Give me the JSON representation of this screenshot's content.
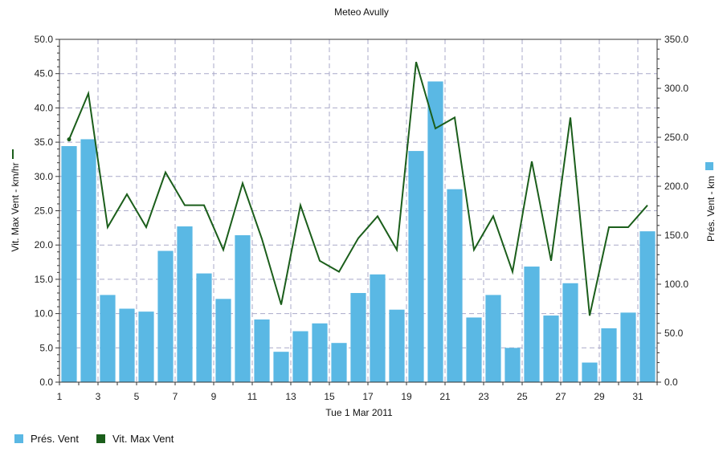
{
  "colors": {
    "bar": "#5ab8e4",
    "line": "#1b5e1b",
    "grid": "#a9a9c9",
    "axis": "#333333"
  },
  "chart_data": {
    "type": "bar",
    "title": "Meteo  Avully",
    "xlabel": "Tue 1 Mar 2011",
    "ylabel_left": "Vit. Max Vent - km/hr",
    "ylabel_right": "Prés. Vent - km",
    "ylim_left": [
      0,
      50
    ],
    "ylim_right": [
      0,
      350
    ],
    "yticks_left": [
      "0.0",
      "5.0",
      "10.0",
      "15.0",
      "20.0",
      "25.0",
      "30.0",
      "35.0",
      "40.0",
      "45.0",
      "50.0"
    ],
    "yticks_right": [
      "0.0",
      "50.0",
      "100.0",
      "150.0",
      "200.0",
      "250.0",
      "300.0",
      "350.0"
    ],
    "xticks": [
      "1",
      "3",
      "5",
      "7",
      "9",
      "11",
      "13",
      "15",
      "17",
      "19",
      "21",
      "23",
      "25",
      "27",
      "29",
      "31"
    ],
    "x": [
      1,
      2,
      3,
      4,
      5,
      6,
      7,
      8,
      9,
      10,
      11,
      12,
      13,
      14,
      15,
      16,
      17,
      18,
      19,
      20,
      21,
      22,
      23,
      24,
      25,
      26,
      27,
      28,
      29,
      30,
      31
    ],
    "grid": true,
    "legend_position": "bottom-left",
    "series": [
      {
        "name": "Prés. Vent",
        "type": "bar",
        "axis": "right",
        "values": [
          241,
          248,
          89,
          75,
          72,
          134,
          159,
          111,
          85,
          150,
          64,
          31,
          52,
          60,
          40,
          91,
          110,
          74,
          236,
          307,
          197,
          66,
          89,
          35,
          118,
          68,
          101,
          20,
          55,
          71,
          154
        ]
      },
      {
        "name": "Vit. Max Vent",
        "type": "line",
        "axis": "left",
        "values": [
          35.4,
          42.1,
          22.6,
          27.4,
          22.6,
          30.6,
          25.8,
          25.8,
          19.3,
          29.0,
          20.9,
          11.3,
          25.8,
          17.7,
          16.1,
          21.0,
          24.2,
          19.3,
          46.7,
          37.0,
          38.6,
          19.3,
          24.2,
          16.1,
          32.2,
          17.7,
          38.6,
          9.7,
          22.6,
          22.6,
          25.8
        ]
      }
    ]
  },
  "legend": {
    "bar_label": "Prés. Vent",
    "line_label": "Vit. Max Vent"
  }
}
